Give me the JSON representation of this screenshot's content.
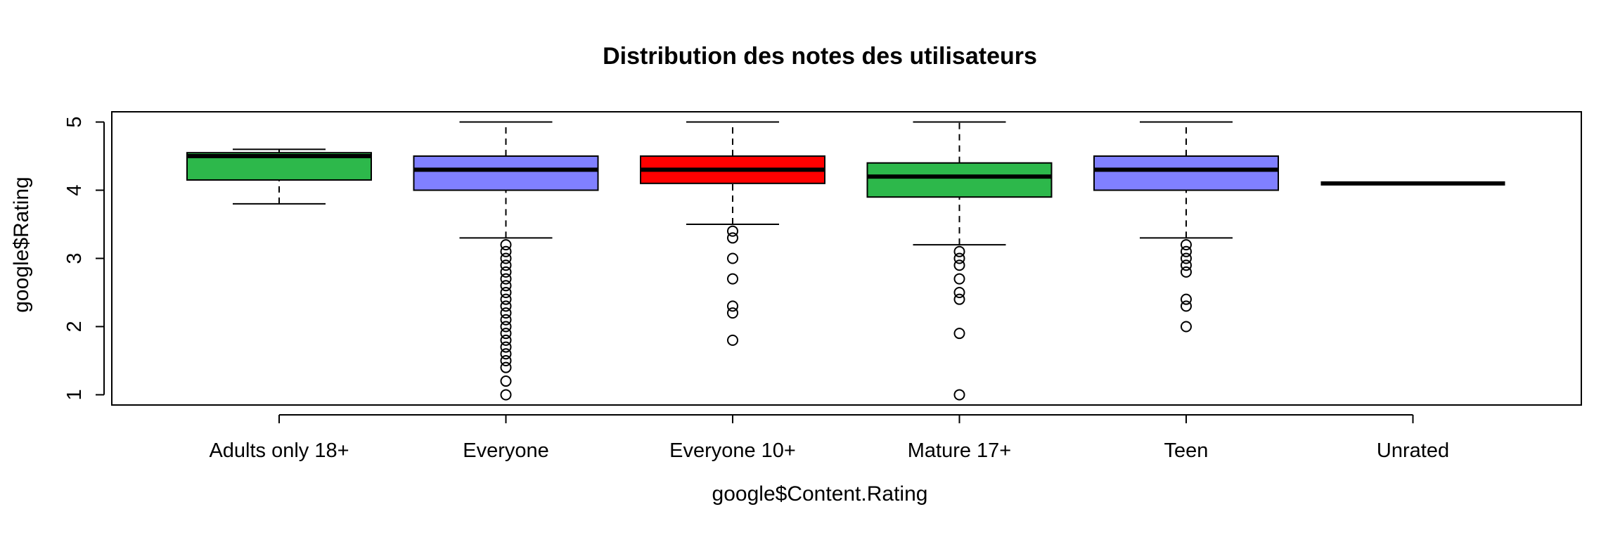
{
  "chart_data": {
    "type": "box",
    "title": "Distribution des notes des utilisateurs",
    "xlabel": "google$Content.Rating",
    "ylabel": "google$Rating",
    "yticks": [
      "1",
      "2",
      "3",
      "4",
      "5"
    ],
    "ylim": [
      0.85,
      5.15
    ],
    "grid": false,
    "legend": "none",
    "categories": [
      "Adults only 18+",
      "Everyone",
      "Everyone 10+",
      "Mature 17+",
      "Teen",
      "Unrated"
    ],
    "boxes": [
      {
        "category": "Adults only 18+",
        "color": "#2DB84B",
        "whisker_low": 3.8,
        "q1": 4.15,
        "median": 4.5,
        "q3": 4.55,
        "whisker_high": 4.6,
        "outliers": []
      },
      {
        "category": "Everyone",
        "color": "#8080FF",
        "whisker_low": 3.3,
        "q1": 4.0,
        "median": 4.3,
        "q3": 4.5,
        "whisker_high": 5.0,
        "outliers": [
          3.2,
          3.1,
          3.0,
          2.9,
          2.8,
          2.7,
          2.6,
          2.5,
          2.4,
          2.3,
          2.2,
          2.1,
          2.0,
          1.9,
          1.8,
          1.7,
          1.6,
          1.5,
          1.4,
          1.2,
          1.0
        ]
      },
      {
        "category": "Everyone 10+",
        "color": "#FF0000",
        "whisker_low": 3.5,
        "q1": 4.1,
        "median": 4.3,
        "q3": 4.5,
        "whisker_high": 5.0,
        "outliers": [
          3.4,
          3.3,
          3.0,
          2.7,
          2.3,
          2.2,
          1.8
        ]
      },
      {
        "category": "Mature 17+",
        "color": "#2DB84B",
        "whisker_low": 3.2,
        "q1": 3.9,
        "median": 4.2,
        "q3": 4.4,
        "whisker_high": 5.0,
        "outliers": [
          3.1,
          3.0,
          2.9,
          2.7,
          2.5,
          2.4,
          1.9,
          1.0
        ]
      },
      {
        "category": "Teen",
        "color": "#8080FF",
        "whisker_low": 3.3,
        "q1": 4.0,
        "median": 4.3,
        "q3": 4.5,
        "whisker_high": 5.0,
        "outliers": [
          3.2,
          3.1,
          3.0,
          2.9,
          2.8,
          2.4,
          2.3,
          2.0
        ]
      },
      {
        "category": "Unrated",
        "color": "#000000",
        "whisker_low": 4.1,
        "q1": 4.1,
        "median": 4.1,
        "q3": 4.1,
        "whisker_high": 4.1,
        "outliers": []
      }
    ]
  }
}
